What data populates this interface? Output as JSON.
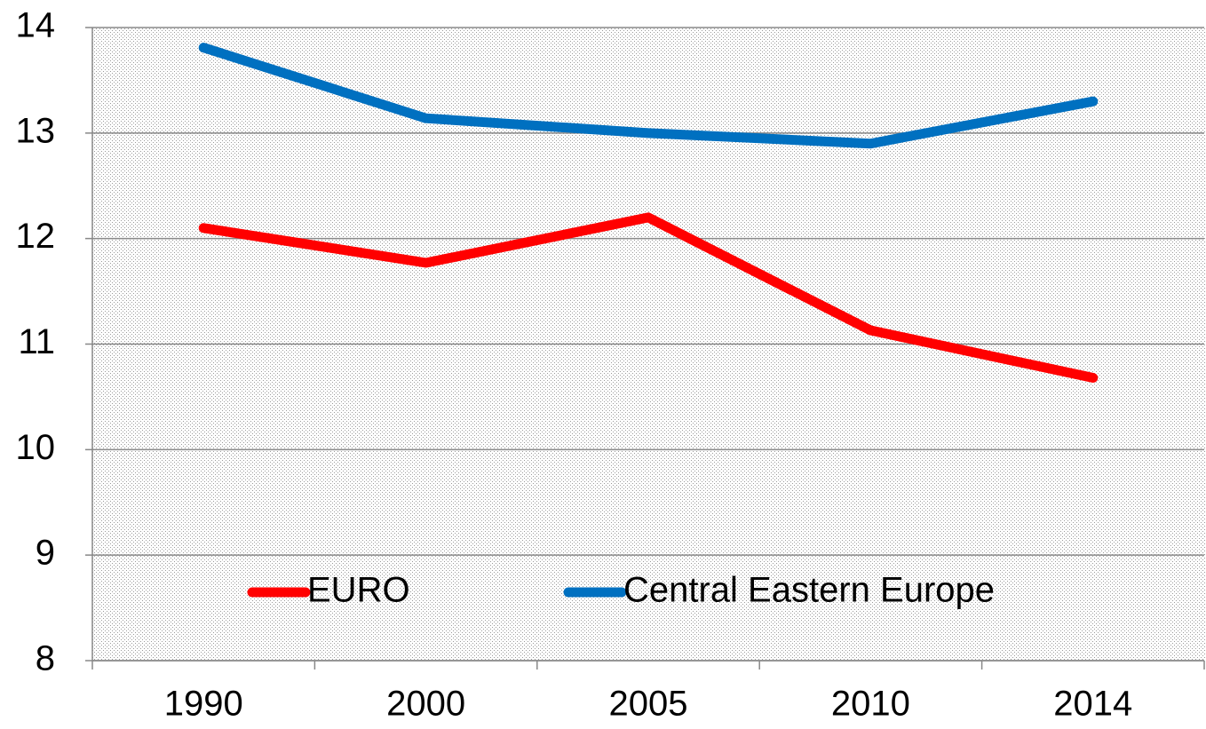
{
  "chart_data": {
    "type": "line",
    "categories": [
      "1990",
      "2000",
      "2005",
      "2010",
      "2014"
    ],
    "series": [
      {
        "name": "EURO",
        "color": "#ff0000",
        "values": [
          12.1,
          11.77,
          12.2,
          11.13,
          10.68
        ]
      },
      {
        "name": "Central Eastern Europe",
        "color": "#0070c0",
        "values": [
          13.81,
          13.14,
          13.0,
          12.9,
          13.3
        ]
      }
    ],
    "ylim": [
      8,
      14
    ],
    "yticks": [
      8,
      9,
      10,
      11,
      12,
      13,
      14
    ],
    "grid": true,
    "legend": "bottom"
  }
}
